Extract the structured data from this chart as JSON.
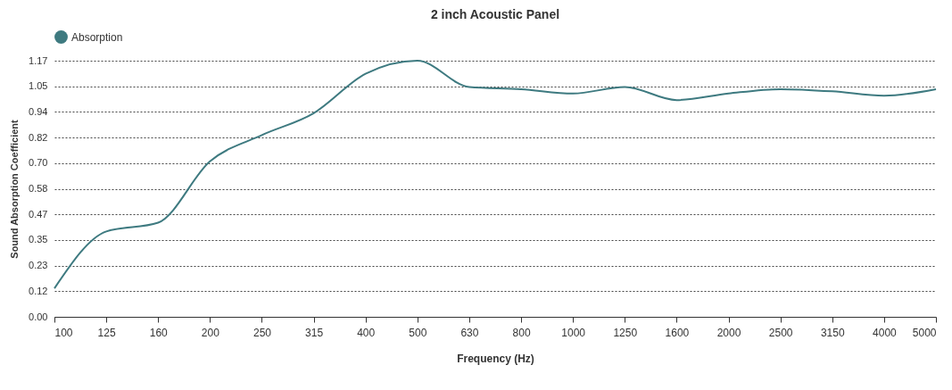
{
  "chart_data": {
    "type": "line",
    "title": "2 inch Acoustic Panel",
    "xlabel": "Frequency (Hz)",
    "ylabel": "Sound Absorption Coefficient",
    "categories": [
      "100",
      "125",
      "160",
      "200",
      "250",
      "315",
      "400",
      "500",
      "630",
      "800",
      "1000",
      "1250",
      "1600",
      "2000",
      "2500",
      "3150",
      "4000",
      "5000"
    ],
    "series": [
      {
        "name": "Absorption",
        "color": "#3e7a80",
        "values": [
          0.13,
          0.39,
          0.43,
          0.71,
          0.83,
          0.93,
          1.11,
          1.17,
          1.05,
          1.04,
          1.02,
          1.05,
          0.99,
          1.02,
          1.04,
          1.03,
          1.01,
          1.04
        ]
      }
    ],
    "ylim": [
      0,
      1.17
    ],
    "yticks": [
      {
        "value": 0,
        "label": "0.00"
      },
      {
        "value": 0.117,
        "label": "0.12"
      },
      {
        "value": 0.234,
        "label": "0.23"
      },
      {
        "value": 0.351,
        "label": "0.35"
      },
      {
        "value": 0.468,
        "label": "0.47"
      },
      {
        "value": 0.585,
        "label": "0.58"
      },
      {
        "value": 0.702,
        "label": "0.70"
      },
      {
        "value": 0.819,
        "label": "0.82"
      },
      {
        "value": 0.936,
        "label": "0.94"
      },
      {
        "value": 1.053,
        "label": "1.05"
      },
      {
        "value": 1.17,
        "label": "1.17"
      }
    ],
    "grid": "y",
    "legend": "top",
    "marker": "none",
    "line_style": "solid"
  }
}
